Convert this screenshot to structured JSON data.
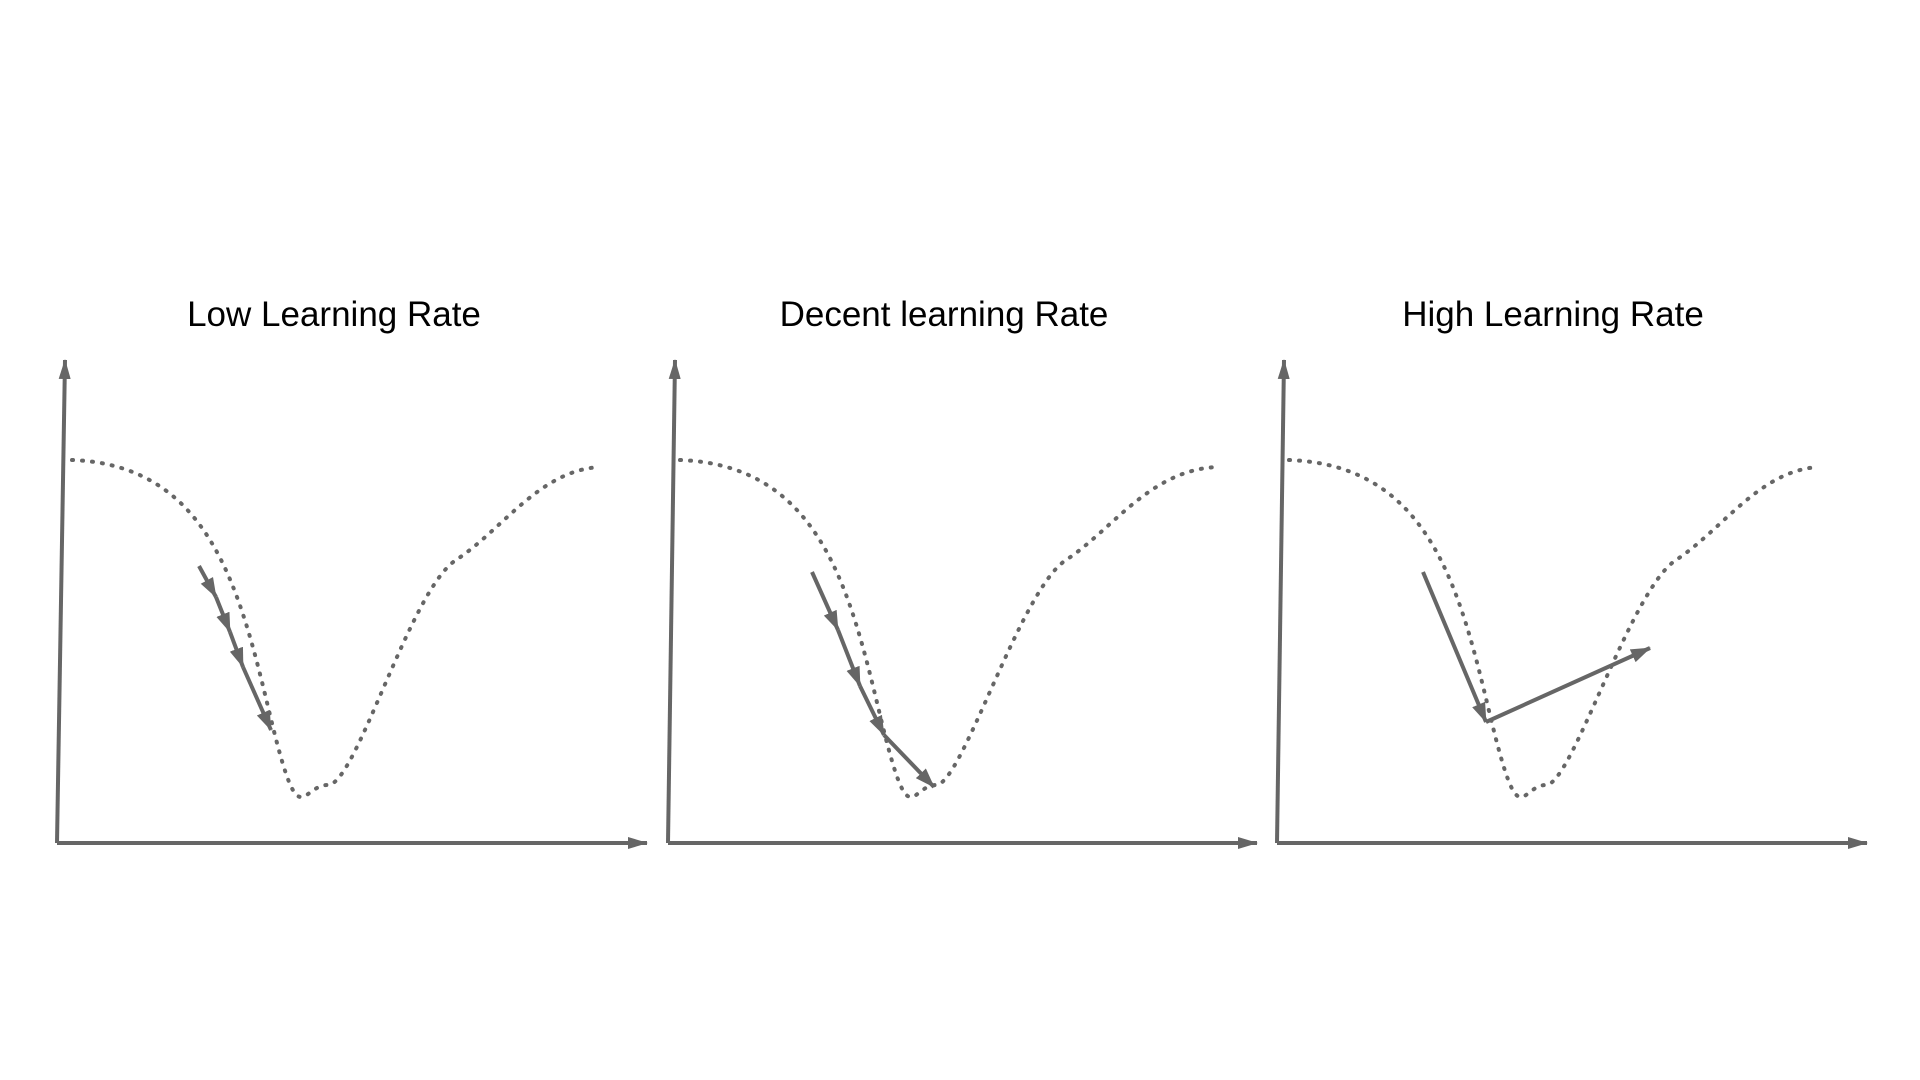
{
  "panels": [
    {
      "id": "low",
      "title": "Low Learning Rate",
      "steps": 4
    },
    {
      "id": "decent",
      "title": "Decent learning Rate",
      "steps": 4
    },
    {
      "id": "high",
      "title": "High Learning Rate",
      "steps": 2
    }
  ],
  "colors": {
    "ink": "#666666",
    "text": "#000000",
    "background": "#ffffff"
  }
}
